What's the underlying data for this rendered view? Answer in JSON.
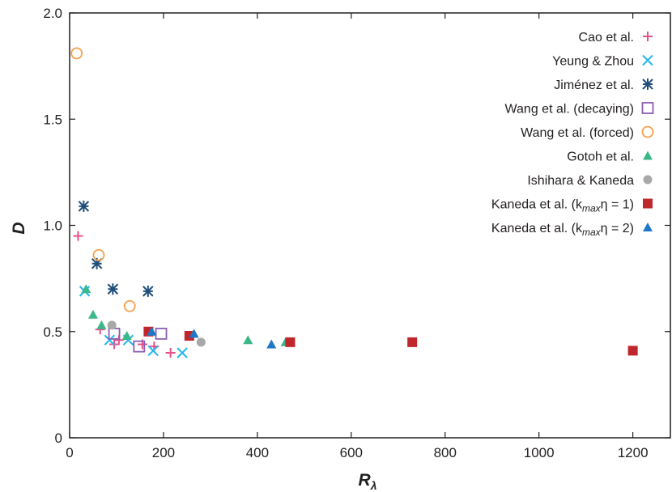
{
  "chart_data": {
    "type": "scatter",
    "xlabel": "R",
    "xlabel_sub": "λ",
    "ylabel": "D",
    "xlim": [
      0,
      1280
    ],
    "ylim": [
      0,
      2.0
    ],
    "x_ticks": [
      "0",
      "200",
      "400",
      "600",
      "800",
      "1000",
      "1200"
    ],
    "x_tick_values": [
      0,
      200,
      400,
      600,
      800,
      1000,
      1200
    ],
    "y_ticks": [
      "0",
      "0.5",
      "1.0",
      "1.5",
      "2.0"
    ],
    "y_tick_values": [
      0,
      0.5,
      1.0,
      1.5,
      2.0
    ],
    "grid": false,
    "legend_position": "top-right",
    "series": [
      {
        "name": "Cao et al.",
        "marker": "plus",
        "color": "#e8508a",
        "points": [
          [
            18,
            0.95
          ],
          [
            65,
            0.51
          ],
          [
            95,
            0.44
          ],
          [
            105,
            0.46
          ],
          [
            155,
            0.44
          ],
          [
            180,
            0.43
          ],
          [
            215,
            0.4
          ]
        ]
      },
      {
        "name": "Yeung & Zhou",
        "marker": "x",
        "color": "#27b7e8",
        "points": [
          [
            32,
            0.69
          ],
          [
            85,
            0.46
          ],
          [
            125,
            0.46
          ],
          [
            178,
            0.41
          ],
          [
            240,
            0.4
          ]
        ]
      },
      {
        "name": "Jiménez et al.",
        "marker": "asterisk",
        "color": "#1f4e7a",
        "points": [
          [
            30,
            1.09
          ],
          [
            58,
            0.82
          ],
          [
            92,
            0.7
          ],
          [
            167,
            0.69
          ]
        ]
      },
      {
        "name": "Wang et al. (decaying)",
        "marker": "square-open",
        "color": "#8a5fb2",
        "points": [
          [
            95,
            0.49
          ],
          [
            148,
            0.43
          ],
          [
            195,
            0.49
          ]
        ]
      },
      {
        "name": "Wang et al. (forced)",
        "marker": "circle-open",
        "color": "#f5a04a",
        "points": [
          [
            15,
            1.81
          ],
          [
            62,
            0.86
          ],
          [
            128,
            0.62
          ]
        ]
      },
      {
        "name": "Gotoh et al.",
        "marker": "triangle",
        "color": "#3bb88a",
        "points": [
          [
            35,
            0.7
          ],
          [
            50,
            0.58
          ],
          [
            68,
            0.53
          ],
          [
            122,
            0.48
          ],
          [
            380,
            0.46
          ],
          [
            460,
            0.45
          ]
        ]
      },
      {
        "name": "Ishihara & Kaneda",
        "marker": "circle",
        "color": "#a8a8a8",
        "points": [
          [
            90,
            0.53
          ],
          [
            280,
            0.45
          ]
        ]
      },
      {
        "name": "Kaneda et al. (k",
        "name_sub": "max",
        "name_rest": "η = 1)",
        "marker": "square",
        "color": "#c0272d",
        "points": [
          [
            168,
            0.5
          ],
          [
            255,
            0.48
          ],
          [
            470,
            0.45
          ],
          [
            730,
            0.45
          ],
          [
            1200,
            0.41
          ]
        ]
      },
      {
        "name": "Kaneda et al. (k",
        "name_sub": "max",
        "name_rest": "η = 2)",
        "marker": "triangle",
        "color": "#1e78c8",
        "points": [
          [
            175,
            0.5
          ],
          [
            265,
            0.49
          ],
          [
            430,
            0.44
          ]
        ]
      }
    ]
  }
}
